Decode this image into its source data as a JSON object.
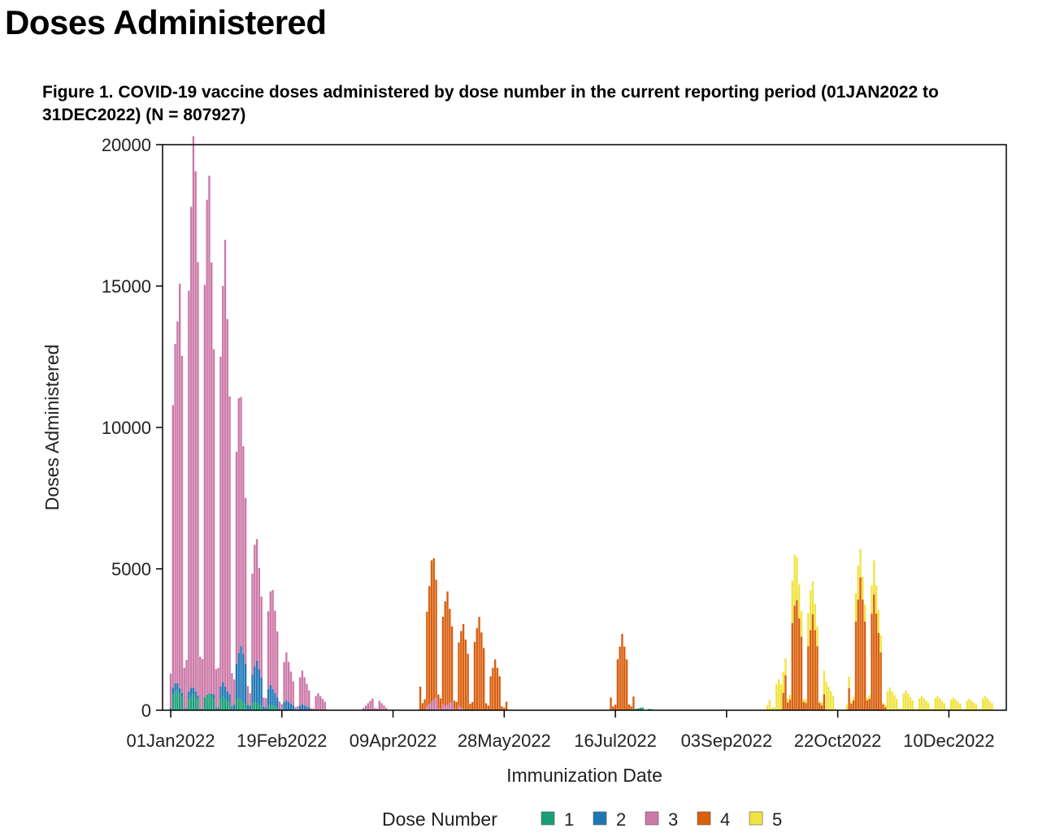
{
  "page": {
    "heading": "Doses Administered"
  },
  "figure": {
    "title": "Figure 1. COVID-19 vaccine doses administered by dose number in the current reporting period (01JAN2022 to 31DEC2022) (N =  807927)"
  },
  "chart_data": {
    "type": "bar",
    "stacked": true,
    "xlabel": "Immunization Date",
    "ylabel": "Doses Administered",
    "ylim": [
      0,
      20000
    ],
    "yticks": [
      0,
      5000,
      10000,
      15000,
      20000
    ],
    "x_range": [
      "2022-01-01",
      "2022-12-31"
    ],
    "x_ticks": [
      {
        "date": "2022-01-01",
        "label": "01Jan2022"
      },
      {
        "date": "2022-02-19",
        "label": "19Feb2022"
      },
      {
        "date": "2022-04-09",
        "label": "09Apr2022"
      },
      {
        "date": "2022-05-28",
        "label": "28May2022"
      },
      {
        "date": "2022-07-16",
        "label": "16Jul2022"
      },
      {
        "date": "2022-09-03",
        "label": "03Sep2022"
      },
      {
        "date": "2022-10-22",
        "label": "22Oct2022"
      },
      {
        "date": "2022-12-10",
        "label": "10Dec2022"
      }
    ],
    "grid": false,
    "legend": {
      "title": "Dose Number",
      "position": "bottom"
    },
    "series": [
      {
        "name": "1",
        "color": "#1b9e77",
        "peaks": [
          {
            "date": "2022-01-03",
            "value": 650
          },
          {
            "date": "2022-01-04",
            "value": 700
          },
          {
            "date": "2022-01-10",
            "value": 500
          },
          {
            "date": "2022-01-11",
            "value": 550
          },
          {
            "date": "2022-01-17",
            "value": 550
          },
          {
            "date": "2022-01-18",
            "value": 600
          },
          {
            "date": "2022-01-24",
            "value": 500
          },
          {
            "date": "2022-01-31",
            "value": 450
          },
          {
            "date": "2022-02-07",
            "value": 300
          },
          {
            "date": "2022-02-14",
            "value": 200
          },
          {
            "date": "2022-07-28",
            "value": 100
          }
        ]
      },
      {
        "name": "2",
        "color": "#1f78b4",
        "peaks": [
          {
            "date": "2022-01-03",
            "value": 300
          },
          {
            "date": "2022-01-10",
            "value": 300
          },
          {
            "date": "2022-01-24",
            "value": 500
          },
          {
            "date": "2022-02-01",
            "value": 1900
          },
          {
            "date": "2022-02-02",
            "value": 1700
          },
          {
            "date": "2022-02-08",
            "value": 1500
          },
          {
            "date": "2022-02-14",
            "value": 700
          },
          {
            "date": "2022-02-21",
            "value": 350
          },
          {
            "date": "2022-02-28",
            "value": 200
          }
        ]
      },
      {
        "name": "3",
        "color": "#cc79a7",
        "peaks": [
          {
            "date": "2022-01-03",
            "value": 12000
          },
          {
            "date": "2022-01-04",
            "value": 12800
          },
          {
            "date": "2022-01-05",
            "value": 14300
          },
          {
            "date": "2022-01-10",
            "value": 17000
          },
          {
            "date": "2022-01-11",
            "value": 19500
          },
          {
            "date": "2022-01-12",
            "value": 18400
          },
          {
            "date": "2022-01-17",
            "value": 17500
          },
          {
            "date": "2022-01-18",
            "value": 18300
          },
          {
            "date": "2022-01-24",
            "value": 14000
          },
          {
            "date": "2022-01-25",
            "value": 15800
          },
          {
            "date": "2022-01-31",
            "value": 9000
          },
          {
            "date": "2022-02-01",
            "value": 8800
          },
          {
            "date": "2022-02-07",
            "value": 4300
          },
          {
            "date": "2022-02-08",
            "value": 4300
          },
          {
            "date": "2022-02-14",
            "value": 3300
          },
          {
            "date": "2022-02-15",
            "value": 3500
          },
          {
            "date": "2022-02-21",
            "value": 1700
          },
          {
            "date": "2022-02-28",
            "value": 1200
          },
          {
            "date": "2022-03-07",
            "value": 600
          },
          {
            "date": "2022-04-01",
            "value": 500
          },
          {
            "date": "2022-04-28",
            "value": 450
          },
          {
            "date": "2022-05-05",
            "value": 300
          }
        ]
      },
      {
        "name": "4",
        "color": "#d95f0e",
        "peaks": [
          {
            "date": "2022-04-26",
            "value": 5000
          },
          {
            "date": "2022-04-27",
            "value": 5000
          },
          {
            "date": "2022-05-02",
            "value": 3700
          },
          {
            "date": "2022-05-03",
            "value": 4000
          },
          {
            "date": "2022-05-09",
            "value": 2700
          },
          {
            "date": "2022-05-10",
            "value": 3000
          },
          {
            "date": "2022-05-16",
            "value": 2900
          },
          {
            "date": "2022-05-17",
            "value": 3300
          },
          {
            "date": "2022-05-24",
            "value": 1800
          },
          {
            "date": "2022-07-19",
            "value": 2700
          },
          {
            "date": "2022-10-03",
            "value": 3700
          },
          {
            "date": "2022-10-04",
            "value": 3900
          },
          {
            "date": "2022-10-11",
            "value": 3400
          },
          {
            "date": "2022-11-01",
            "value": 4700
          },
          {
            "date": "2022-11-07",
            "value": 4100
          }
        ]
      },
      {
        "name": "5",
        "color": "#f0e442",
        "peaks": [
          {
            "date": "2022-09-26",
            "value": 1100
          },
          {
            "date": "2022-10-03",
            "value": 1800
          },
          {
            "date": "2022-10-10",
            "value": 1400
          },
          {
            "date": "2022-10-17",
            "value": 1000
          },
          {
            "date": "2022-10-31",
            "value": 1200
          },
          {
            "date": "2022-11-07",
            "value": 1200
          },
          {
            "date": "2022-11-14",
            "value": 800
          },
          {
            "date": "2022-11-21",
            "value": 700
          },
          {
            "date": "2022-11-28",
            "value": 500
          },
          {
            "date": "2022-12-05",
            "value": 500
          },
          {
            "date": "2022-12-12",
            "value": 450
          },
          {
            "date": "2022-12-19",
            "value": 400
          },
          {
            "date": "2022-12-26",
            "value": 500
          }
        ]
      }
    ]
  }
}
